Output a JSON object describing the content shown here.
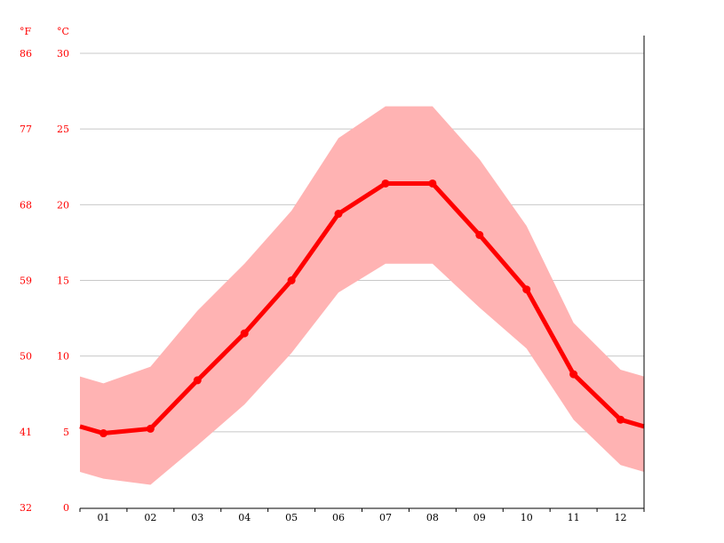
{
  "chart_data": {
    "type": "line",
    "title": "",
    "unit_labels": {
      "fahrenheit": "°F",
      "celsius": "°C"
    },
    "categories": [
      "01",
      "02",
      "03",
      "04",
      "05",
      "06",
      "07",
      "08",
      "09",
      "10",
      "11",
      "12"
    ],
    "ylim": [
      0,
      30
    ],
    "yticks_c": [
      "0",
      "5",
      "10",
      "15",
      "20",
      "25",
      "30"
    ],
    "yticks_f": [
      "32",
      "41",
      "50",
      "59",
      "68",
      "77",
      "86"
    ],
    "grid": true,
    "series": [
      {
        "role": "mean",
        "values": [
          4.9,
          5.2,
          8.4,
          11.5,
          15.0,
          19.4,
          21.4,
          21.4,
          18.0,
          14.4,
          8.8,
          5.8
        ],
        "color": "#ff0000"
      },
      {
        "role": "max",
        "values": [
          8.2,
          9.3,
          13.0,
          16.1,
          19.6,
          24.4,
          26.5,
          26.5,
          23.0,
          18.6,
          12.2,
          9.1
        ],
        "color": "#ffb3b3"
      },
      {
        "role": "min",
        "values": [
          1.9,
          1.5,
          4.1,
          6.8,
          10.2,
          14.2,
          16.1,
          16.1,
          13.2,
          10.5,
          5.8,
          2.8
        ],
        "color": "#ffb3b3"
      }
    ]
  }
}
